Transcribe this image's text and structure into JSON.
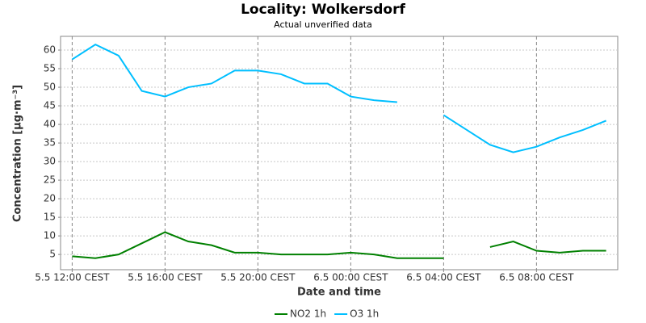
{
  "chart_data": {
    "type": "line",
    "title": "Locality: Wolkersdorf",
    "subtitle": "Actual unverified data",
    "x_label": "Date and time",
    "y_label": "Concentration [µg·m⁻³]",
    "categories": [
      "5.5 12:00 CEST",
      null,
      null,
      null,
      "5.5 16:00 CEST",
      null,
      null,
      null,
      "5.5 20:00 CEST",
      null,
      null,
      null,
      "6.5 00:00 CEST",
      null,
      null,
      null,
      "6.5 04:00 CEST",
      null,
      null,
      null,
      "6.5 08:00 CEST",
      null,
      null,
      null
    ],
    "series": [
      {
        "name": "NO2 1h",
        "color": "#008000",
        "values": [
          4.5,
          4,
          5,
          8,
          11,
          8.5,
          7.5,
          5.5,
          5.5,
          5,
          5,
          5,
          5.5,
          5,
          4,
          4,
          4,
          null,
          7,
          8.5,
          6,
          5.5,
          6,
          6
        ]
      },
      {
        "name": "O3 1h",
        "color": "#00bfff",
        "values": [
          57.5,
          61.5,
          58.5,
          49,
          47.5,
          50,
          51,
          54.5,
          54.5,
          53.5,
          51,
          51,
          47.5,
          46.5,
          46,
          null,
          42.5,
          38.5,
          34.5,
          32.5,
          34,
          36.5,
          38.5,
          41
        ]
      }
    ],
    "ylim": [
      0.9,
      63.7
    ],
    "yticks": [
      5,
      10,
      15,
      20,
      25,
      30,
      35,
      40,
      45,
      50,
      55,
      60
    ],
    "grid": true,
    "legend": "bottom"
  }
}
